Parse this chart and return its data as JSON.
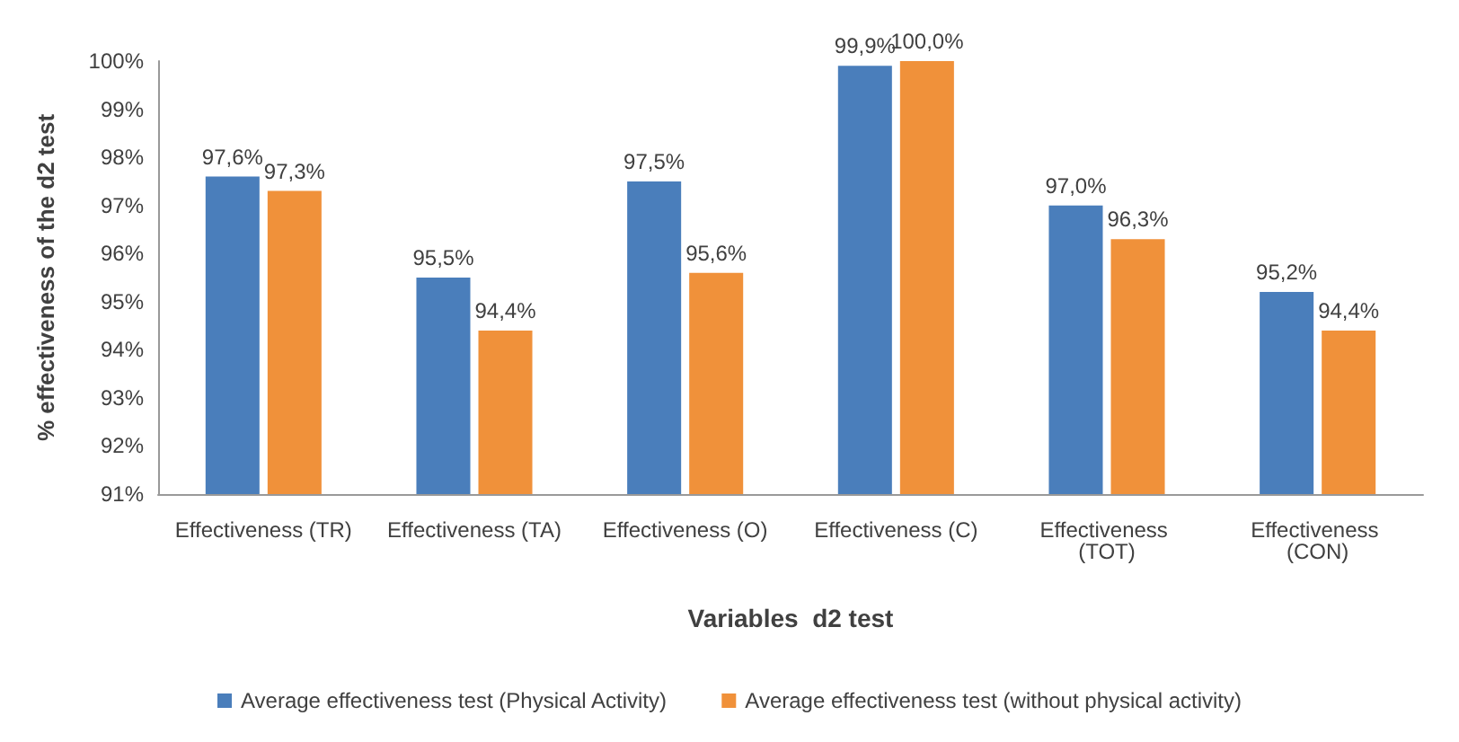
{
  "chart_data": {
    "type": "bar",
    "xlabel": "Variables  d2 test",
    "ylabel": "% effectiveness of the d2 test",
    "categories": [
      "Effectiveness (TR)",
      "Effectiveness (TA)",
      "Effectiveness (O)",
      "Effectiveness (C)",
      "Effectiveness (TOT)",
      "Effectiveness (CON)"
    ],
    "series": [
      {
        "name": "Average effectiveness test (Physical Activity)",
        "color": "#4a7ebb",
        "values": [
          97.6,
          95.5,
          97.5,
          99.9,
          97.0,
          95.2
        ],
        "value_labels": [
          "97,6%",
          "95,5%",
          "97,5%",
          "99,9%",
          "97,0%",
          "95,2%"
        ]
      },
      {
        "name": "Average effectiveness test (without physical activity)",
        "color": "#f0913a",
        "values": [
          97.3,
          94.4,
          95.6,
          100.0,
          96.3,
          94.4
        ],
        "value_labels": [
          "97,3%",
          "94,4%",
          "95,6%",
          "100,0%",
          "96,3%",
          "94,4%"
        ]
      }
    ],
    "ylim": [
      91,
      100
    ],
    "yticks": [
      {
        "value": 91,
        "label": "91%"
      },
      {
        "value": 92,
        "label": "92%"
      },
      {
        "value": 93,
        "label": "93%"
      },
      {
        "value": 94,
        "label": "94%"
      },
      {
        "value": 95,
        "label": "95%"
      },
      {
        "value": 96,
        "label": "96%"
      },
      {
        "value": 97,
        "label": "97%"
      },
      {
        "value": 98,
        "label": "98%"
      },
      {
        "value": 99,
        "label": "99%"
      },
      {
        "value": 100,
        "label": "100%"
      }
    ],
    "grid": false,
    "legend": "bottom"
  }
}
